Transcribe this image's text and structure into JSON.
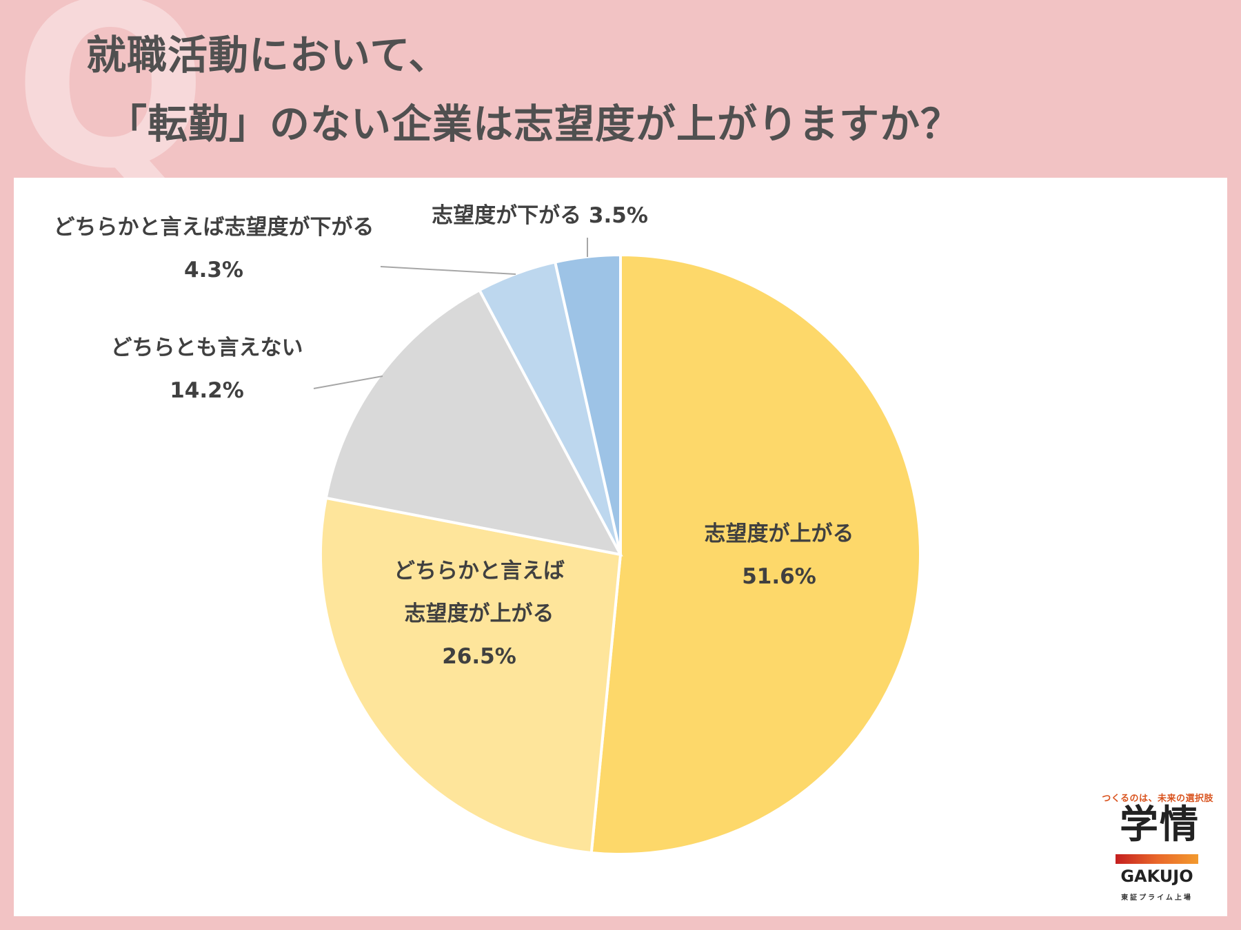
{
  "title": {
    "line1": "就職活動において、",
    "line2": "「転勤」のない企業は志望度が上がりますか？"
  },
  "q_mark": "Q",
  "chart_data": {
    "type": "pie",
    "slices": [
      {
        "label_lines": [
          "志望度が上がる"
        ],
        "value_label": "51.6%",
        "value": 51.6,
        "color": "#fdd86a"
      },
      {
        "label_lines": [
          "どちらかと言えば",
          "志望度が上がる"
        ],
        "value_label": "26.5%",
        "value": 26.5,
        "color": "#fee59b"
      },
      {
        "label_lines": [
          "どちらとも言えない"
        ],
        "value_label": "14.2%",
        "value": 14.2,
        "color": "#d9d9d9"
      },
      {
        "label_lines": [
          "どちらかと言えば志望度が下がる"
        ],
        "value_label": "4.3%",
        "value": 4.3,
        "color": "#bdd7ee"
      },
      {
        "label_lines": [
          "志望度が下がる 3.5%"
        ],
        "value_label": "",
        "value": 3.5,
        "color": "#9dc3e6"
      }
    ]
  },
  "logo": {
    "tagline": "つくるのは、未来の選択肢",
    "kanji": "学情",
    "name": "GAKUJO",
    "sub": "東証プライム上場"
  }
}
